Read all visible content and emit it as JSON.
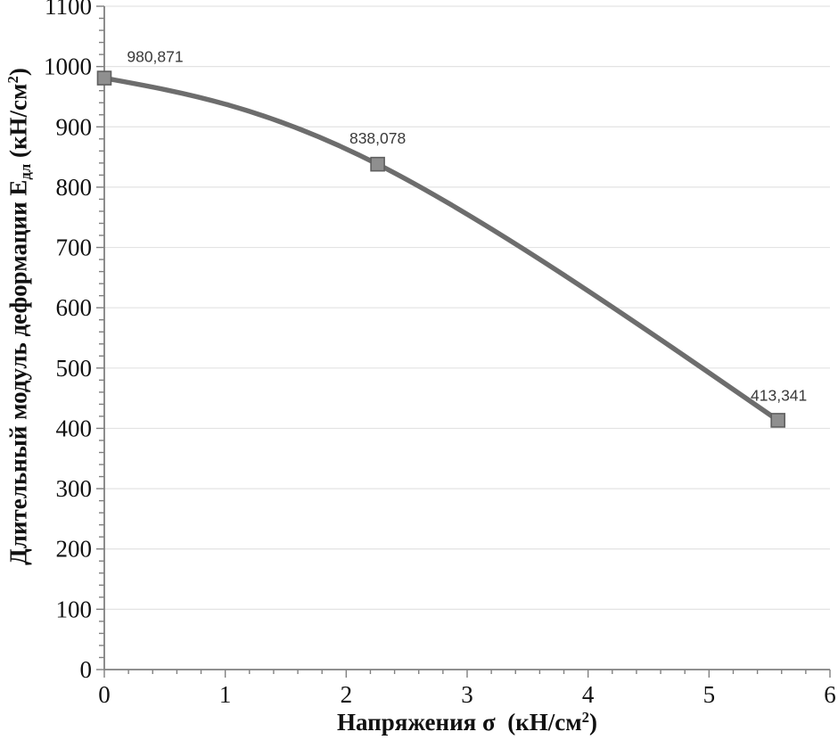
{
  "chart_data": {
    "type": "line",
    "title": "",
    "x_axis": {
      "title_main": "Напряжения σ  (кН/см",
      "title_sup": "2",
      "title_end": ")",
      "min": 0,
      "max": 6,
      "major_unit": 1,
      "minor_unit": 0.2,
      "tick_labels": [
        "0",
        "1",
        "2",
        "3",
        "4",
        "5",
        "6"
      ]
    },
    "y_axis": {
      "title_main": "Длительный модуль деформации Е",
      "title_sub": "дл",
      "title_mid": " (кН/см",
      "title_sup": "2",
      "title_end": ")",
      "min": 0,
      "max": 1100,
      "major_unit": 100,
      "minor_unit": 20,
      "tick_labels": [
        "0",
        "100",
        "200",
        "300",
        "400",
        "500",
        "600",
        "700",
        "800",
        "900",
        "1000",
        "1100"
      ]
    },
    "grid": "horizontal-major-only",
    "legend": "none",
    "series": [
      {
        "name": "Длительный модуль деформации",
        "line_color": "#6d6d6d",
        "line_width": 5.5,
        "marker": "square",
        "marker_size": 15,
        "marker_fill": "#8f8f8f",
        "marker_stroke": "#5f5f5f",
        "smooth": true,
        "points": [
          {
            "x": 0,
            "y": 980.871,
            "label": "980,871",
            "label_dx": 57,
            "label_dy": -24
          },
          {
            "x": 2.26,
            "y": 838.078,
            "label": "838,078",
            "label_dx": 0,
            "label_dy": -29
          },
          {
            "x": 5.57,
            "y": 413.341,
            "label": "413,341",
            "label_dx": 1,
            "label_dy": -28
          }
        ]
      }
    ],
    "colors": {
      "gridline": "#e3e3e3",
      "axis_line": "#808080",
      "tick": "#808080",
      "text": "#111111",
      "point_label": "#3a3a3a",
      "background": "#ffffff"
    }
  }
}
